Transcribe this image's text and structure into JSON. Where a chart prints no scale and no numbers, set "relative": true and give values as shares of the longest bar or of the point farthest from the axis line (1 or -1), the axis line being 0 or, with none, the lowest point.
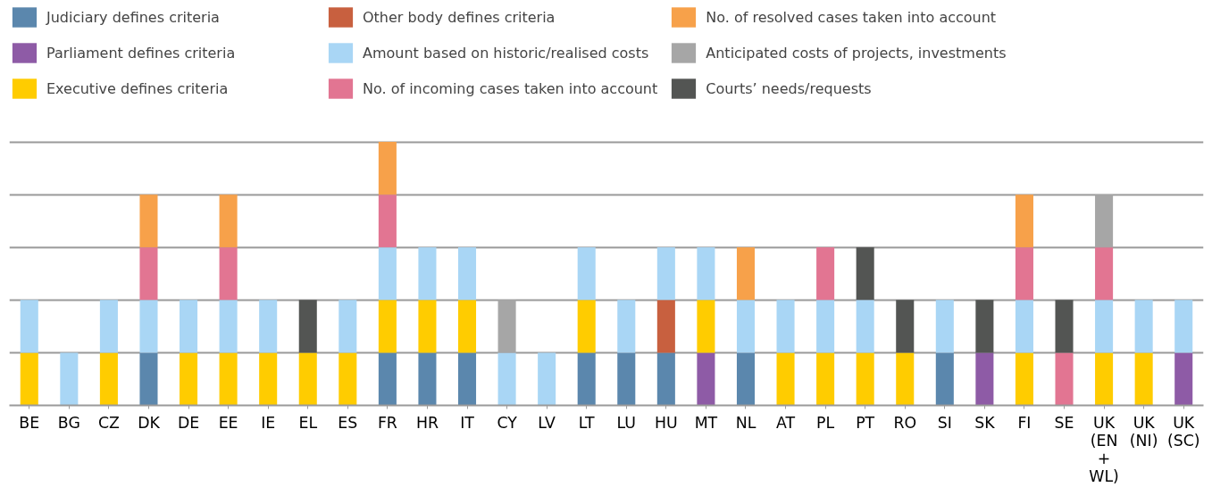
{
  "chart_data": {
    "type": "bar",
    "stacked": true,
    "relative": true,
    "grid": "y",
    "legend": "top",
    "categories": [
      "BE",
      "BG",
      "CZ",
      "DK",
      "DE",
      "EE",
      "IE",
      "EL",
      "ES",
      "FR",
      "HR",
      "IT",
      "CY",
      "LV",
      "LT",
      "LU",
      "HU",
      "MT",
      "NL",
      "AT",
      "PL",
      "PT",
      "RO",
      "SI",
      "SK",
      "FI",
      "SE",
      "UK (EN + WL)",
      "UK (NI)",
      "UK (SC)"
    ],
    "series": [
      {
        "name": "Judiciary defines criteria",
        "color": "#5b87ad",
        "values": [
          null,
          null,
          null,
          0.2,
          null,
          null,
          null,
          null,
          null,
          0.2,
          0.2,
          0.2,
          null,
          null,
          0.2,
          0.2,
          0.2,
          null,
          0.2,
          null,
          null,
          null,
          null,
          0.2,
          null,
          null,
          null,
          null,
          null,
          null
        ]
      },
      {
        "name": "Parliament defines criteria",
        "color": "#8e5ba6",
        "values": [
          null,
          null,
          null,
          null,
          null,
          null,
          null,
          null,
          null,
          null,
          null,
          null,
          null,
          null,
          null,
          null,
          null,
          0.2,
          null,
          null,
          null,
          null,
          null,
          null,
          0.2,
          null,
          null,
          null,
          null,
          0.2
        ]
      },
      {
        "name": "Executive defines criteria",
        "color": "#ffcc00",
        "values": [
          0.2,
          null,
          0.2,
          null,
          0.2,
          0.2,
          0.2,
          0.2,
          0.2,
          0.2,
          0.2,
          0.2,
          null,
          null,
          0.2,
          null,
          null,
          0.2,
          null,
          0.2,
          0.2,
          0.2,
          0.2,
          null,
          null,
          0.2,
          null,
          0.2,
          0.2,
          null
        ]
      },
      {
        "name": "Other body defines criteria",
        "color": "#c8603f",
        "values": [
          null,
          null,
          null,
          null,
          null,
          null,
          null,
          null,
          null,
          null,
          null,
          null,
          null,
          null,
          null,
          null,
          0.2,
          null,
          null,
          null,
          null,
          null,
          null,
          null,
          null,
          null,
          null,
          null,
          null,
          null
        ]
      },
      {
        "name": "Amount based on historic/realised costs",
        "color": "#a9d6f5",
        "values": [
          0.2,
          0.2,
          0.2,
          0.2,
          0.2,
          0.2,
          0.2,
          null,
          0.2,
          0.2,
          0.2,
          0.2,
          0.2,
          0.2,
          0.2,
          0.2,
          0.2,
          0.2,
          0.2,
          0.2,
          0.2,
          0.2,
          null,
          0.2,
          null,
          0.2,
          null,
          0.2,
          0.2,
          0.2
        ]
      },
      {
        "name": "No. of incoming cases taken into account",
        "color": "#e27592",
        "values": [
          null,
          null,
          null,
          0.2,
          null,
          0.2,
          null,
          null,
          null,
          0.2,
          null,
          null,
          null,
          null,
          null,
          null,
          null,
          null,
          null,
          null,
          0.2,
          null,
          null,
          null,
          null,
          0.2,
          0.2,
          0.2,
          null,
          null
        ]
      },
      {
        "name": "No. of resolved cases taken into account",
        "color": "#f7a14a",
        "values": [
          null,
          null,
          null,
          0.2,
          null,
          0.2,
          null,
          null,
          null,
          0.2,
          null,
          null,
          null,
          null,
          null,
          null,
          null,
          null,
          0.2,
          null,
          null,
          null,
          null,
          null,
          null,
          0.2,
          null,
          null,
          null,
          null
        ]
      },
      {
        "name": "Anticipated costs of projects, investments",
        "color": "#a6a6a6",
        "values": [
          null,
          null,
          null,
          null,
          null,
          null,
          null,
          null,
          null,
          null,
          null,
          null,
          0.2,
          null,
          null,
          null,
          null,
          null,
          null,
          null,
          null,
          null,
          null,
          null,
          null,
          null,
          null,
          0.2,
          null,
          null
        ]
      },
      {
        "name": "Courts’ needs/requests",
        "color": "#535553",
        "values": [
          null,
          null,
          null,
          null,
          null,
          null,
          null,
          0.2,
          null,
          null,
          null,
          null,
          null,
          null,
          null,
          null,
          null,
          null,
          null,
          null,
          null,
          0.2,
          0.2,
          null,
          0.2,
          null,
          0.2,
          null,
          null,
          null
        ]
      }
    ]
  }
}
